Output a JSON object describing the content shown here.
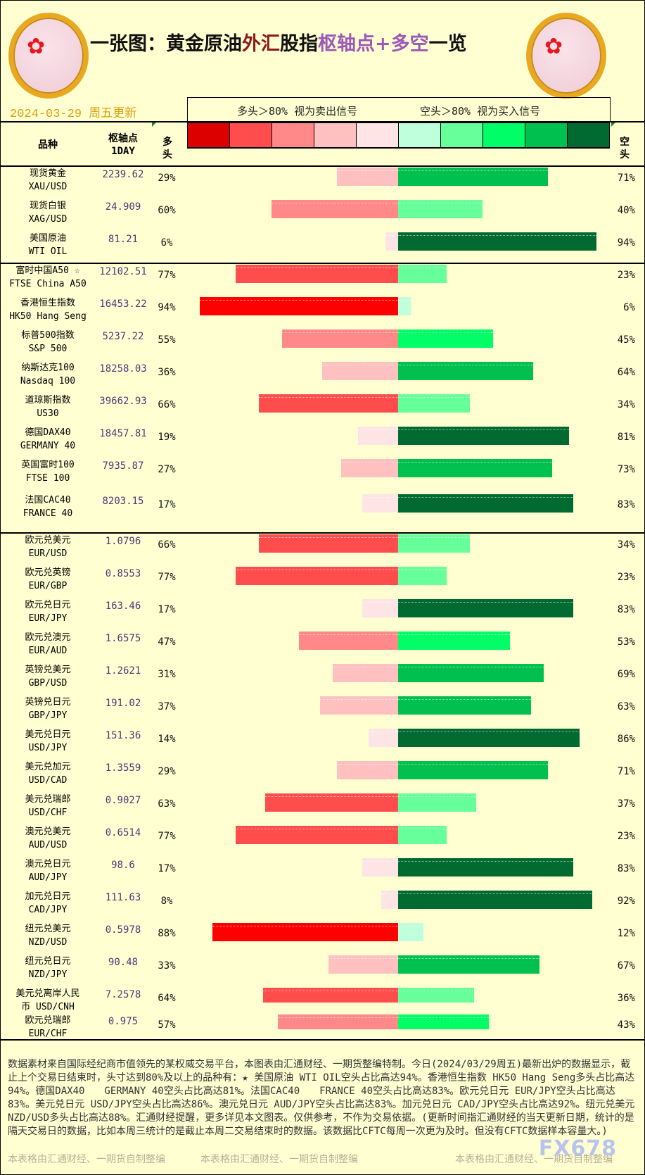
{
  "header": {
    "title_segments": [
      {
        "text": "一张图：黄金原油",
        "color": "#111111"
      },
      {
        "text": "外汇",
        "color": "#8b1a1a"
      },
      {
        "text": "股指",
        "color": "#111111"
      },
      {
        "text": "枢轴点+多空",
        "color": "#9b59b6"
      },
      {
        "text": "一览",
        "color": "#111111"
      }
    ],
    "date": "2024-03-29 周五更新",
    "legend_long": "多头＞80% 视为卖出信号",
    "legend_short": "空头＞80% 视为买入信号",
    "logo_watermark": "fx678 yly"
  },
  "columns": {
    "name": "品种",
    "pivot": "枢轴点",
    "pivot_sub": "1DAY",
    "long_1": "多",
    "long_2": "头",
    "short_1": "空",
    "short_2": "头"
  },
  "palette": {
    "long": [
      "#ffe4e6",
      "#ffc0c0",
      "#ff8888",
      "#ff4d4d",
      "#ff0000"
    ],
    "short": [
      "#c0ffdc",
      "#66ff99",
      "#00ff66",
      "#00c050",
      "#006a30"
    ],
    "legend": [
      "#dd0000",
      "#ff4d4d",
      "#ff8888",
      "#ffc0c0",
      "#ffe4e6",
      "#c0ffdc",
      "#66ff99",
      "#00ff66",
      "#00c050",
      "#006a30"
    ]
  },
  "sections": [
    {
      "rows": [
        {
          "name": "现货黄金",
          "code": "XAU/USD",
          "pivot": "2239.62",
          "long": 29,
          "short": 71
        },
        {
          "name": "现货白银",
          "code": "XAG/USD",
          "pivot": "24.909",
          "long": 60,
          "short": 40
        },
        {
          "name": "美国原油",
          "code": "WTI OIL",
          "pivot": "81.21",
          "long": 6,
          "short": 94
        }
      ]
    },
    {
      "rows": [
        {
          "name": "富时中国A50 ☆",
          "code": "FTSE China A50",
          "pivot": "12102.51",
          "long": 77,
          "short": 23
        },
        {
          "name": "香港恒生指数",
          "code": "HK50 Hang Seng",
          "pivot": "16453.22",
          "long": 94,
          "short": 6
        },
        {
          "name": "标普500指数",
          "code": "S&P 500",
          "pivot": "5237.22",
          "long": 55,
          "short": 45
        },
        {
          "name": "纳斯达克100",
          "code": "Nasdaq 100",
          "pivot": "18258.03",
          "long": 36,
          "short": 64
        },
        {
          "name": "道琼斯指数",
          "code": "US30",
          "pivot": "39662.93",
          "long": 66,
          "short": 34
        },
        {
          "name": "德国DAX40",
          "code": "GERMANY 40",
          "pivot": "18457.81",
          "long": 19,
          "short": 81
        },
        {
          "name": "英国富时100",
          "code": "FTSE 100",
          "pivot": "7935.87",
          "long": 27,
          "short": 73
        },
        {
          "name": "法国CAC40",
          "code": "FRANCE 40",
          "pivot": "8203.15",
          "long": 17,
          "short": 83
        }
      ]
    },
    {
      "rows": [
        {
          "name": "欧元兑美元",
          "code": "EUR/USD",
          "pivot": "1.0796",
          "long": 66,
          "short": 34
        },
        {
          "name": "欧元兑英镑",
          "code": "EUR/GBP",
          "pivot": "0.8553",
          "long": 77,
          "short": 23
        },
        {
          "name": "欧元兑日元",
          "code": "EUR/JPY",
          "pivot": "163.46",
          "long": 17,
          "short": 83
        },
        {
          "name": "欧元兑澳元",
          "code": "EUR/AUD",
          "pivot": "1.6575",
          "long": 47,
          "short": 53
        },
        {
          "name": "英镑兑美元",
          "code": "GBP/USD",
          "pivot": "1.2621",
          "long": 31,
          "short": 69
        },
        {
          "name": "英镑兑日元",
          "code": "GBP/JPY",
          "pivot": "191.02",
          "long": 37,
          "short": 63
        },
        {
          "name": "美元兑日元",
          "code": "USD/JPY",
          "pivot": "151.36",
          "long": 14,
          "short": 86
        },
        {
          "name": "美元兑加元",
          "code": "USD/CAD",
          "pivot": "1.3559",
          "long": 29,
          "short": 71
        },
        {
          "name": "美元兑瑞郎",
          "code": "USD/CHF",
          "pivot": "0.9027",
          "long": 63,
          "short": 37
        },
        {
          "name": "澳元兑美元",
          "code": "AUD/USD",
          "pivot": "0.6514",
          "long": 77,
          "short": 23
        },
        {
          "name": "澳元兑日元",
          "code": "AUD/JPY",
          "pivot": "98.6",
          "long": 17,
          "short": 83
        },
        {
          "name": "加元兑日元",
          "code": "CAD/JPY",
          "pivot": "111.63",
          "long": 8,
          "short": 92
        },
        {
          "name": "纽元兑美元",
          "code": "NZD/USD",
          "pivot": "0.5978",
          "long": 88,
          "short": 12
        },
        {
          "name": "纽元兑日元",
          "code": "NZD/JPY",
          "pivot": "90.48",
          "long": 33,
          "short": 67
        },
        {
          "name": "美元兑离岸人民",
          "code": "币    USD/CNH",
          "pivot": "7.2578",
          "long": 64,
          "short": 36
        },
        {
          "name": "欧元兑瑞郎",
          "code": "EUR/CHF",
          "pivot": "0.975",
          "long": 57,
          "short": 43
        }
      ]
    }
  ],
  "footer": {
    "text": "数据素材来自国际经纪商市值领先的某权威交易平台，本图表由汇通财经、一期货整编特制。今日(2024/03/29周五)最新出炉的数据显示，截止上个交易日结束时，头寸达到80%及以上的品种有：★ 美国原油 WTI OIL空头占比高达94%。香港恒生指数 HK50 Hang Seng多头占比高达94%。德国DAX40　　GERMANY 40空头占比高达81%。法国CAC40　　FRANCE 40空头占比高达83%。欧元兑日元 EUR/JPY空头占比高达83%。美元兑日元 USD/JPY空头占比高达86%。澳元兑日元 AUD/JPY空头占比高达83%。加元兑日元 CAD/JPY空头占比高达92%。纽元兑美元 NZD/USD多头占比高达88%。汇通财经提醒，更多详见本文图表。仅供参考，不作为交易依据。(更新时间指汇通财经的当天更新日期，统计的是隔天交易日的数据，比如本周三统计的是截止本周二交易结束时的数据。该数据比CFTC每周一次更为及时。但没有CFTC数据样本容量大。)",
    "credit": "本表格由汇通财经、一期货自制整编",
    "brand": "FX678"
  }
}
